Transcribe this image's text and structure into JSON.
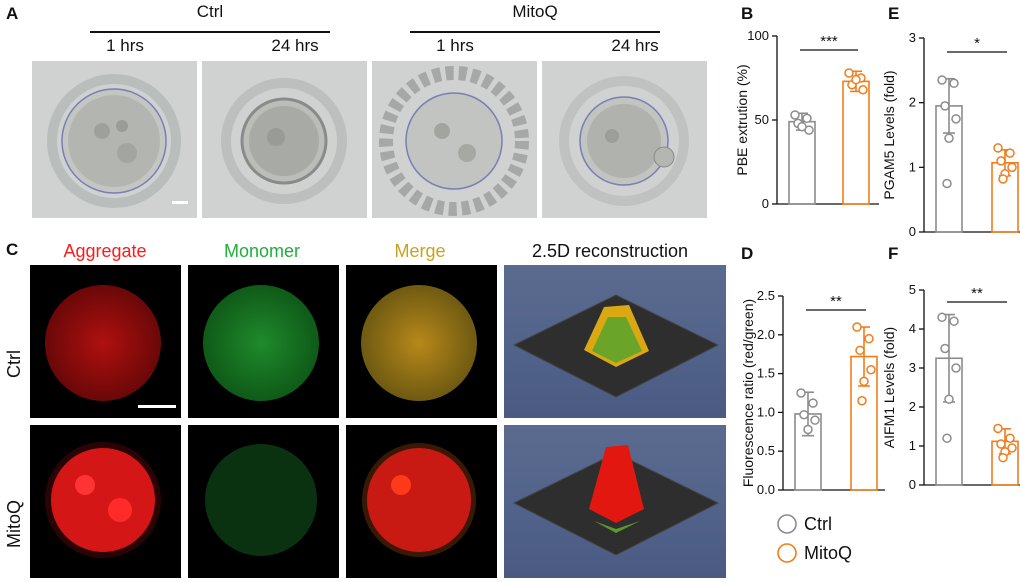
{
  "panels": {
    "A": "A",
    "B": "B",
    "C": "C",
    "D": "D",
    "E": "E",
    "F": "F"
  },
  "panelA": {
    "group1": "Ctrl",
    "group2": "MitoQ",
    "time1": "1 hrs",
    "time2": "24 hrs"
  },
  "panelC": {
    "col1": "Aggregate",
    "col2": "Monomer",
    "col3": "Merge",
    "col4": "2.5D reconstruction",
    "row1": "Ctrl",
    "row2": "MitoQ",
    "colors": {
      "aggregate": "#ff1a1a",
      "monomer": "#1fae3c",
      "merge": "#c9a21c"
    }
  },
  "legend": {
    "ctrl": "Ctrl",
    "mitoq": "MitoQ"
  },
  "colors": {
    "ctrl": "#8c8c8c",
    "mitoq": "#f07d1a"
  },
  "chart_data": [
    {
      "id": "B",
      "type": "bar",
      "ylabel": "PBE extrution (%)",
      "ylim": [
        0,
        100
      ],
      "yticks": [
        0,
        50,
        100
      ],
      "categories": [
        "Ctrl",
        "MitoQ"
      ],
      "values": [
        49,
        73
      ],
      "sd": [
        5,
        6
      ],
      "points": [
        [
          53,
          51,
          48,
          44,
          46
        ],
        [
          78,
          75,
          71,
          68,
          74
        ]
      ],
      "sig": "***"
    },
    {
      "id": "D",
      "type": "bar",
      "ylabel": "Fluorescence ratio (red/green)",
      "ylim": [
        0,
        2.5
      ],
      "yticks": [
        0.0,
        0.5,
        1.0,
        1.5,
        2.0,
        2.5
      ],
      "tick_labels": [
        "0.0",
        "0.5",
        "1.0",
        "1.5",
        "2.0",
        "2.5"
      ],
      "categories": [
        "Ctrl",
        "MitoQ"
      ],
      "values": [
        0.98,
        1.72
      ],
      "sd": [
        0.28,
        0.38
      ],
      "points": [
        [
          1.25,
          1.12,
          0.97,
          0.9,
          0.78
        ],
        [
          2.1,
          1.95,
          1.8,
          1.55,
          1.4,
          1.15
        ]
      ],
      "sig": "**"
    },
    {
      "id": "E",
      "type": "bar",
      "ylabel": "PGAM5 Levels (fold)",
      "ylim": [
        0,
        3
      ],
      "yticks": [
        0,
        1,
        2,
        3
      ],
      "categories": [
        "Ctrl",
        "MitoQ"
      ],
      "values": [
        1.95,
        1.07
      ],
      "sd": [
        0.42,
        0.2
      ],
      "points": [
        [
          2.35,
          2.3,
          1.95,
          1.75,
          1.45,
          0.75
        ],
        [
          1.3,
          1.22,
          1.1,
          1.0,
          0.9,
          0.82
        ]
      ],
      "sig": "*"
    },
    {
      "id": "F",
      "type": "bar",
      "ylabel": "AIFM1 Levels (fold)",
      "ylim": [
        0,
        5
      ],
      "yticks": [
        0,
        1,
        2,
        3,
        4,
        5
      ],
      "categories": [
        "Ctrl",
        "MitoQ"
      ],
      "values": [
        3.25,
        1.12
      ],
      "sd": [
        1.12,
        0.32
      ],
      "points": [
        [
          4.3,
          4.2,
          3.5,
          3.0,
          2.2,
          1.2
        ],
        [
          1.45,
          1.2,
          1.05,
          0.95,
          0.85,
          0.7
        ]
      ],
      "sig": "**"
    }
  ]
}
